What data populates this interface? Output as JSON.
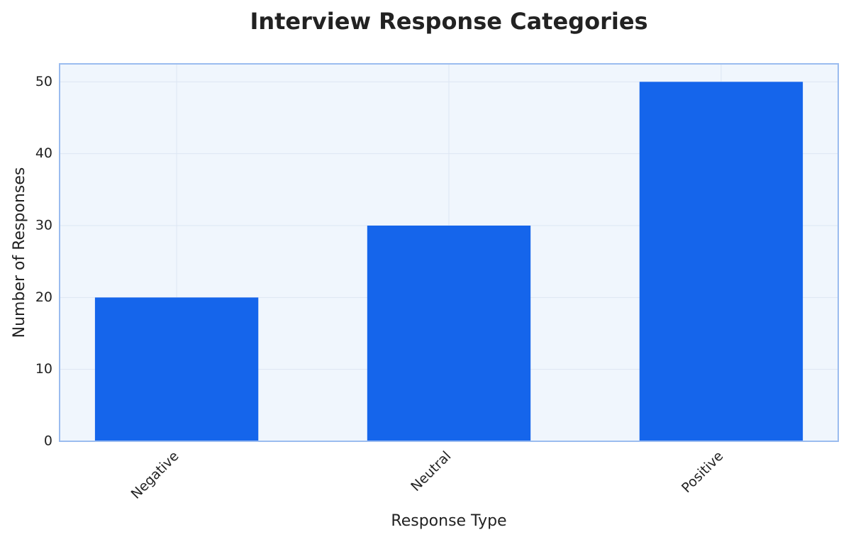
{
  "chart_data": {
    "type": "bar",
    "title": "Interview Response Categories",
    "x_label": "Response Type",
    "y_label": "Number of Responses",
    "categories": [
      "Negative",
      "Neutral",
      "Positive"
    ],
    "values": [
      20,
      30,
      50
    ],
    "color": "#1565eb",
    "ylim": [
      0,
      52.5
    ],
    "yticks": [
      0,
      10,
      20,
      30,
      40,
      50
    ],
    "grid": true
  }
}
